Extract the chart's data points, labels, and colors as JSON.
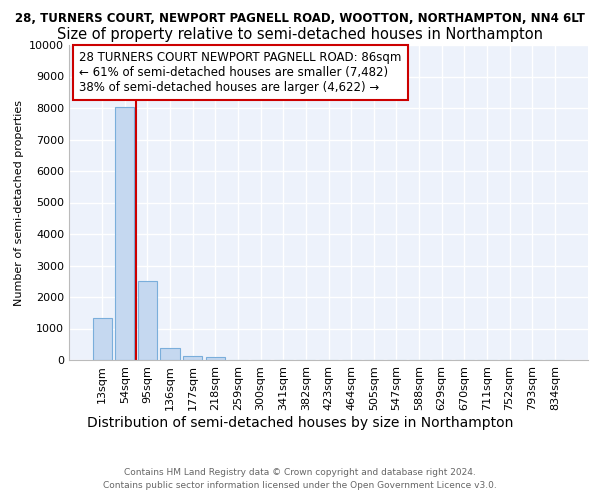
{
  "title_line1": "28, TURNERS COURT, NEWPORT PAGNELL ROAD, WOOTTON, NORTHAMPTON, NN4 6LT",
  "title_line2": "Size of property relative to semi-detached houses in Northampton",
  "xlabel": "Distribution of semi-detached houses by size in Northampton",
  "ylabel": "Number of semi-detached properties",
  "categories": [
    "13sqm",
    "54sqm",
    "95sqm",
    "136sqm",
    "177sqm",
    "218sqm",
    "259sqm",
    "300sqm",
    "341sqm",
    "382sqm",
    "423sqm",
    "464sqm",
    "505sqm",
    "547sqm",
    "588sqm",
    "629sqm",
    "670sqm",
    "711sqm",
    "752sqm",
    "793sqm",
    "834sqm"
  ],
  "values": [
    1320,
    8020,
    2520,
    380,
    130,
    110,
    0,
    0,
    0,
    0,
    0,
    0,
    0,
    0,
    0,
    0,
    0,
    0,
    0,
    0,
    0
  ],
  "bar_color": "#c5d8f0",
  "bar_edge_color": "#7aaedb",
  "vline_x": 1.5,
  "vline_color": "#cc0000",
  "annotation_text": "28 TURNERS COURT NEWPORT PAGNELL ROAD: 86sqm\n← 61% of semi-detached houses are smaller (7,482)\n38% of semi-detached houses are larger (4,622) →",
  "annotation_box_edge": "#cc0000",
  "ylim": [
    0,
    10000
  ],
  "yticks": [
    0,
    1000,
    2000,
    3000,
    4000,
    5000,
    6000,
    7000,
    8000,
    9000,
    10000
  ],
  "footer_line1": "Contains HM Land Registry data © Crown copyright and database right 2024.",
  "footer_line2": "Contains public sector information licensed under the Open Government Licence v3.0.",
  "bg_color": "#edf2fb",
  "grid_color": "#ffffff",
  "title1_fontsize": 8.5,
  "title2_fontsize": 10.5,
  "annot_fontsize": 8.5,
  "xlabel_fontsize": 10,
  "ylabel_fontsize": 8,
  "tick_fontsize": 8
}
